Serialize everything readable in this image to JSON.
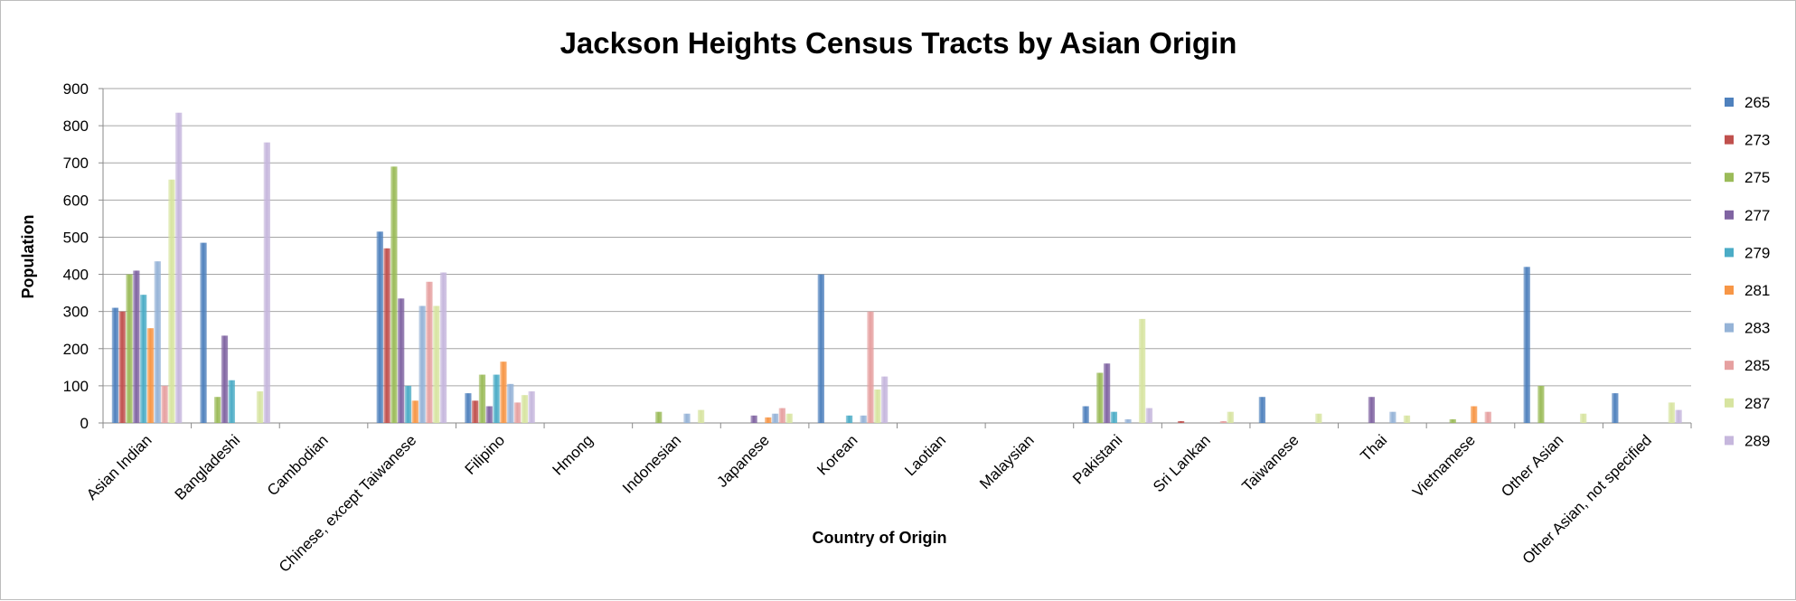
{
  "chart_data": {
    "type": "bar",
    "title": "Jackson Heights Census Tracts by Asian Origin",
    "xlabel": "Country of Origin",
    "ylabel": "Population",
    "ylim": [
      0,
      900
    ],
    "yticks": [
      0,
      100,
      200,
      300,
      400,
      500,
      600,
      700,
      800,
      900
    ],
    "grid": true,
    "legend_position": "right",
    "categories": [
      "Asian Indian",
      "Bangladeshi",
      "Cambodian",
      "Chinese, except Taiwanese",
      "Filipino",
      "Hmong",
      "Indonesian",
      "Japanese",
      "Korean",
      "Laotian",
      "Malaysian",
      "Pakistani",
      "Sri Lankan",
      "Taiwanese",
      "Thai",
      "Vietnamese",
      "Other Asian",
      "Other Asian, not specified"
    ],
    "series": [
      {
        "name": "265",
        "color": "#4f81bd",
        "values": [
          310,
          485,
          0,
          515,
          80,
          0,
          0,
          0,
          400,
          0,
          0,
          45,
          0,
          70,
          0,
          0,
          420,
          80
        ]
      },
      {
        "name": "273",
        "color": "#c0504d",
        "values": [
          300,
          0,
          0,
          470,
          60,
          0,
          0,
          0,
          0,
          0,
          0,
          0,
          5,
          0,
          0,
          0,
          0,
          0
        ]
      },
      {
        "name": "275",
        "color": "#9bbb59",
        "values": [
          400,
          70,
          0,
          690,
          130,
          0,
          30,
          0,
          0,
          0,
          0,
          135,
          0,
          0,
          0,
          10,
          100,
          0
        ]
      },
      {
        "name": "277",
        "color": "#8064a2",
        "values": [
          410,
          235,
          0,
          335,
          45,
          0,
          0,
          20,
          0,
          0,
          0,
          160,
          0,
          0,
          70,
          0,
          0,
          0
        ]
      },
      {
        "name": "279",
        "color": "#4bacc6",
        "values": [
          345,
          115,
          0,
          100,
          130,
          0,
          0,
          0,
          20,
          0,
          0,
          30,
          0,
          0,
          0,
          0,
          0,
          0
        ]
      },
      {
        "name": "281",
        "color": "#f79646",
        "values": [
          255,
          0,
          0,
          60,
          165,
          0,
          0,
          15,
          0,
          0,
          0,
          0,
          0,
          0,
          0,
          45,
          0,
          0
        ]
      },
      {
        "name": "283",
        "color": "#95b3d7",
        "values": [
          435,
          0,
          0,
          315,
          105,
          0,
          25,
          25,
          20,
          0,
          0,
          10,
          0,
          0,
          30,
          0,
          0,
          0
        ]
      },
      {
        "name": "285",
        "color": "#e6a0a0",
        "values": [
          100,
          0,
          0,
          380,
          55,
          0,
          0,
          40,
          300,
          0,
          0,
          0,
          5,
          0,
          0,
          30,
          0,
          0
        ]
      },
      {
        "name": "287",
        "color": "#d7e4a0",
        "values": [
          655,
          85,
          0,
          315,
          75,
          0,
          35,
          25,
          90,
          0,
          0,
          280,
          30,
          25,
          20,
          0,
          25,
          55
        ]
      },
      {
        "name": "289",
        "color": "#c6b7dd",
        "values": [
          835,
          755,
          0,
          405,
          85,
          0,
          0,
          0,
          125,
          0,
          0,
          40,
          0,
          0,
          0,
          0,
          0,
          35
        ]
      }
    ]
  }
}
